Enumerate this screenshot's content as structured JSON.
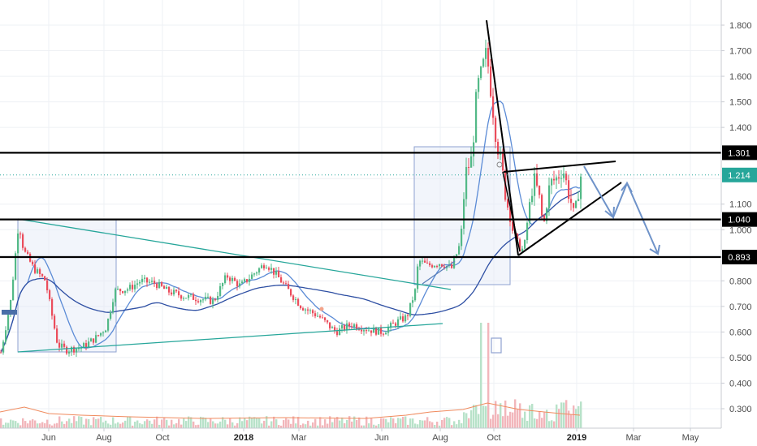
{
  "chart_data": {
    "type": "candlestick",
    "title": "",
    "y_axis": {
      "ticks": [
        "0.300",
        "0.400",
        "0.500",
        "0.600",
        "0.700",
        "0.800",
        "0.900",
        "1.000",
        "1.100",
        "1.200",
        "1.300",
        "1.400",
        "1.500",
        "1.600",
        "1.700",
        "1.800"
      ],
      "ylim": [
        0.25,
        1.85
      ],
      "position": "right"
    },
    "x_axis": {
      "ticks": [
        "Jun",
        "Aug",
        "Oct",
        "2018",
        "Mar",
        "Jun",
        "Aug",
        "Oct",
        "2019",
        "Mar",
        "May"
      ],
      "bold_ticks": [
        "2018",
        "2019"
      ]
    },
    "horizontal_levels": [
      {
        "value": 1.301,
        "label": "1.301",
        "style": "black"
      },
      {
        "value": 1.04,
        "label": "1.040",
        "style": "black"
      },
      {
        "value": 0.893,
        "label": "0.893",
        "style": "black"
      }
    ],
    "last_price": {
      "value": 1.214,
      "label": "1.214",
      "color": "#26a69a"
    },
    "colors": {
      "up": "#53b987",
      "down": "#eb4d5c",
      "ma_fast": "#5b8bd6",
      "ma_slow": "#2e4fa3",
      "trendline": "#26a69a",
      "box_fill": "#e3e9f7",
      "box_border": "#8fa2d0",
      "arrow": "#6f93c9",
      "volume_up": "#b8e2c9",
      "volume_down": "#f2b6bb",
      "volume_ma": "#f08a5d"
    },
    "price_series": [
      {
        "date": "2017-04",
        "close": 0.52
      },
      {
        "date": "2017-05",
        "close": 1.02
      },
      {
        "date": "2017-05-15",
        "close": 0.82
      },
      {
        "date": "2017-06",
        "close": 0.55
      },
      {
        "date": "2017-07",
        "close": 0.53
      },
      {
        "date": "2017-08",
        "close": 0.59
      },
      {
        "date": "2017-09",
        "close": 0.8
      },
      {
        "date": "2017-10",
        "close": 0.75
      },
      {
        "date": "2017-11",
        "close": 0.72
      },
      {
        "date": "2017-12",
        "close": 0.79
      },
      {
        "date": "2018-01",
        "close": 0.86
      },
      {
        "date": "2018-02",
        "close": 0.8
      },
      {
        "date": "2018-03",
        "close": 0.7
      },
      {
        "date": "2018-04",
        "close": 0.6
      },
      {
        "date": "2018-05",
        "close": 0.6
      },
      {
        "date": "2018-06",
        "close": 0.66
      },
      {
        "date": "2018-07",
        "close": 0.86
      },
      {
        "date": "2018-08",
        "close": 0.9
      },
      {
        "date": "2018-08-20",
        "close": 1.25
      },
      {
        "date": "2018-09",
        "close": 1.72
      },
      {
        "date": "2018-10",
        "close": 1.16
      },
      {
        "date": "2018-11",
        "close": 0.9
      },
      {
        "date": "2018-12",
        "close": 1.21
      },
      {
        "date": "2019-01",
        "close": 1.214
      }
    ]
  },
  "ui": {
    "scale_marker_label": ""
  }
}
